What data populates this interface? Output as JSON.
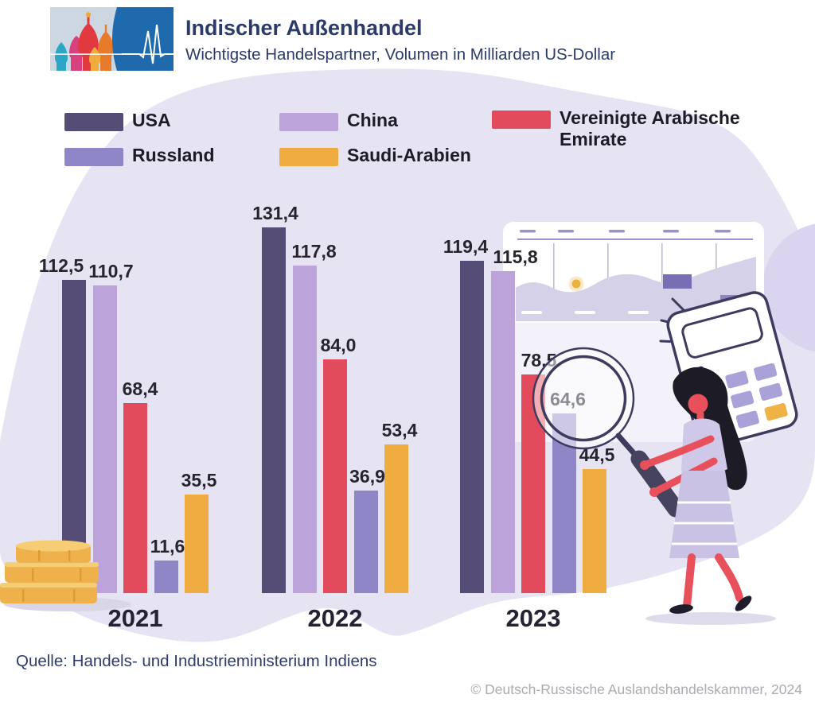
{
  "header": {
    "title": "Indischer Außenhandel",
    "subtitle": "Wichtigste Handelspartner, Volumen in Milliarden US-Dollar",
    "logo": {
      "name": "ahk-logo",
      "icons": [
        "st-basil-domes-icon",
        "pulse-line-icon"
      ],
      "panel_color": "#1e6aad",
      "bg_color": "#cdd7e2"
    }
  },
  "chart_data": {
    "type": "bar",
    "categories": [
      "2021",
      "2022",
      "2023"
    ],
    "series": [
      {
        "name": "USA",
        "color": "#564d76",
        "values": [
          112.5,
          131.4,
          119.4
        ]
      },
      {
        "name": "China",
        "color": "#bca3da",
        "values": [
          110.7,
          117.8,
          115.8
        ]
      },
      {
        "name": "Vereinigte Arabische Emirate",
        "color": "#e24b5c",
        "values": [
          68.4,
          84.0,
          78.5
        ]
      },
      {
        "name": "Russland",
        "color": "#8e86c6",
        "values": [
          11.6,
          36.9,
          64.6
        ]
      },
      {
        "name": "Saudi-Arabien",
        "color": "#efac41",
        "values": [
          35.5,
          53.4,
          44.5
        ]
      }
    ],
    "unit": "Milliarden US-Dollar",
    "value_label_decimal_separator": ",",
    "ylim": [
      0,
      135
    ],
    "grid": false,
    "legend_position": "top",
    "magnified_value": {
      "series": "Russland",
      "category": "2023",
      "label_color": "#8b8b94"
    }
  },
  "decorations": {
    "names": [
      "coins-icon",
      "magnifier-icon",
      "calculator-icon",
      "woman-illustration",
      "dashboard-panel-illustration",
      "background-blob"
    ],
    "colors": {
      "blob": "#e6e3f3",
      "blob_circle": "#dad4ee",
      "gold": "#efb14c",
      "navy_outline": "#3d3b5e",
      "skin": "#e8505b",
      "dress": "#cfc8e8"
    }
  },
  "footer": {
    "source": "Quelle: Handels- und Industrieministerium Indiens",
    "copyright": "© Deutsch-Russische Auslandshandelskammer, 2024"
  }
}
